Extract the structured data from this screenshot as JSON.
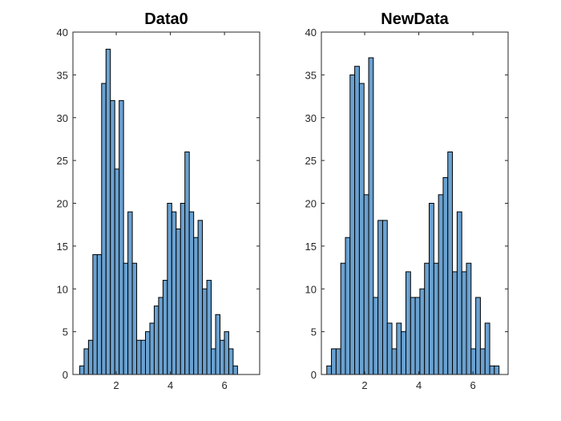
{
  "chart_data": [
    {
      "type": "bar",
      "title": "Data0",
      "xlabel": "",
      "ylabel": "",
      "xlim": [
        0.4,
        7.3
      ],
      "ylim": [
        0,
        40
      ],
      "xticks": [
        2,
        4,
        6
      ],
      "yticks": [
        0,
        5,
        10,
        15,
        20,
        25,
        30,
        35,
        40
      ],
      "bin_start": 0.65,
      "bin_width": 0.162,
      "values": [
        1,
        3,
        4,
        14,
        14,
        34,
        38,
        32,
        24,
        32,
        13,
        19,
        13,
        4,
        4,
        5,
        6,
        8,
        9,
        11,
        20,
        19,
        17,
        20,
        26,
        19,
        16,
        18,
        10,
        11,
        3,
        7,
        4,
        5,
        3,
        1
      ],
      "color": "#6aa1d0",
      "grid": false,
      "legend": false
    },
    {
      "type": "bar",
      "title": "NewData",
      "xlabel": "",
      "ylabel": "",
      "xlim": [
        0.4,
        7.3
      ],
      "ylim": [
        0,
        40
      ],
      "xticks": [
        2,
        4,
        6
      ],
      "yticks": [
        0,
        5,
        10,
        15,
        20,
        25,
        30,
        35,
        40
      ],
      "bin_start": 0.6,
      "bin_width": 0.172,
      "values": [
        1,
        3,
        3,
        13,
        16,
        35,
        36,
        34,
        21,
        37,
        9,
        18,
        18,
        6,
        3,
        6,
        5,
        12,
        9,
        9,
        10,
        13,
        20,
        13,
        21,
        23,
        26,
        12,
        19,
        12,
        13,
        3,
        9,
        3,
        6,
        1,
        1
      ],
      "color": "#6aa1d0",
      "grid": false,
      "legend": false
    }
  ]
}
